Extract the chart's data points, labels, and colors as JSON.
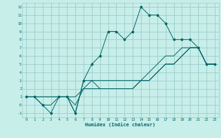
{
  "xlabel": "Humidex (Indice chaleur)",
  "bg_color": "#c8eeea",
  "grid_color": "#99cccc",
  "line_color": "#006666",
  "xlim": [
    -0.5,
    23.5
  ],
  "ylim": [
    -1.5,
    12.5
  ],
  "xticks": [
    0,
    1,
    2,
    3,
    4,
    5,
    6,
    7,
    8,
    9,
    10,
    11,
    12,
    13,
    14,
    15,
    16,
    17,
    18,
    19,
    20,
    21,
    22,
    23
  ],
  "yticks": [
    -1,
    0,
    1,
    2,
    3,
    4,
    5,
    6,
    7,
    8,
    9,
    10,
    11,
    12
  ],
  "main_line": [
    1,
    1,
    0,
    -1,
    1,
    1,
    -1,
    3,
    5,
    6,
    9,
    9,
    8,
    9,
    12,
    11,
    11,
    10,
    8,
    8,
    8,
    7,
    5,
    5
  ],
  "line2": [
    1,
    1,
    1,
    1,
    1,
    1,
    1,
    2,
    2,
    2,
    2,
    2,
    2,
    2,
    3,
    3,
    4,
    5,
    5,
    6,
    7,
    7,
    5,
    5
  ],
  "line3": [
    1,
    1,
    0,
    0,
    1,
    1,
    0,
    2,
    3,
    3,
    3,
    3,
    3,
    3,
    3,
    4,
    5,
    6,
    6,
    7,
    7,
    7,
    5,
    5
  ],
  "line4": [
    1,
    1,
    1,
    1,
    1,
    1,
    -1,
    3,
    3,
    2,
    2,
    2,
    2,
    2,
    3,
    3,
    4,
    5,
    5,
    6,
    7,
    7,
    5,
    5
  ]
}
